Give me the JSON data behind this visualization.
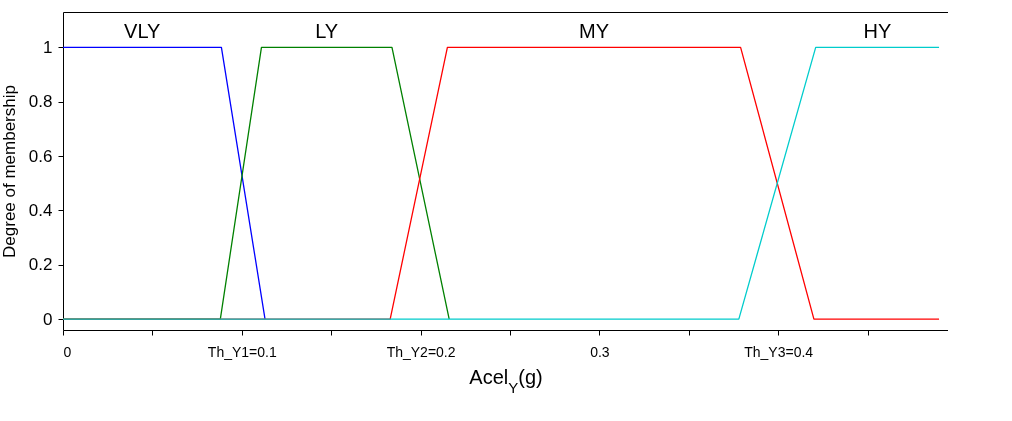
{
  "chart_data": {
    "type": "line",
    "xlabel": "Acel$_{Y}$(g)",
    "ylabel": "Degree of membership",
    "xlim": [
      0,
      0.495
    ],
    "ylim": [
      -0.04,
      1.13
    ],
    "xticks": [
      0,
      {
        "value": 0.05,
        "label": null
      },
      {
        "value": 0.1,
        "label": "Th_Y1=0.1"
      },
      {
        "value": 0.15,
        "label": null
      },
      {
        "value": 0.2,
        "label": "Th_Y2=0.2"
      },
      {
        "value": 0.25,
        "label": null
      },
      0.3,
      {
        "value": 0.35,
        "label": null
      },
      {
        "value": 0.4,
        "label": "Th_Y3=0.4"
      },
      {
        "value": 0.45,
        "label": null
      }
    ],
    "yticks": [
      0,
      0.2,
      0.4,
      0.6,
      0.8,
      1
    ],
    "grid": false,
    "legend": false,
    "series": [
      {
        "name": "VLY",
        "color": "#0000ff",
        "x": [
          0,
          0.0886,
          0.113
        ],
        "values": [
          1,
          1,
          0
        ]
      },
      {
        "name": "LY",
        "color": "#008000",
        "x": [
          0,
          0.088,
          0.111,
          0.184,
          0.216
        ],
        "values": [
          0,
          0,
          1,
          1,
          0
        ]
      },
      {
        "name": "MY",
        "color": "#ff0000",
        "x": [
          0,
          0.183,
          0.215,
          0.379,
          0.42,
          0.49
        ],
        "values": [
          0,
          0,
          1,
          1,
          0,
          0
        ]
      },
      {
        "name": "HY",
        "color": "#00cccc",
        "x": [
          0,
          0.378,
          0.421,
          0.49
        ],
        "values": [
          0,
          0,
          1,
          1
        ]
      }
    ]
  }
}
